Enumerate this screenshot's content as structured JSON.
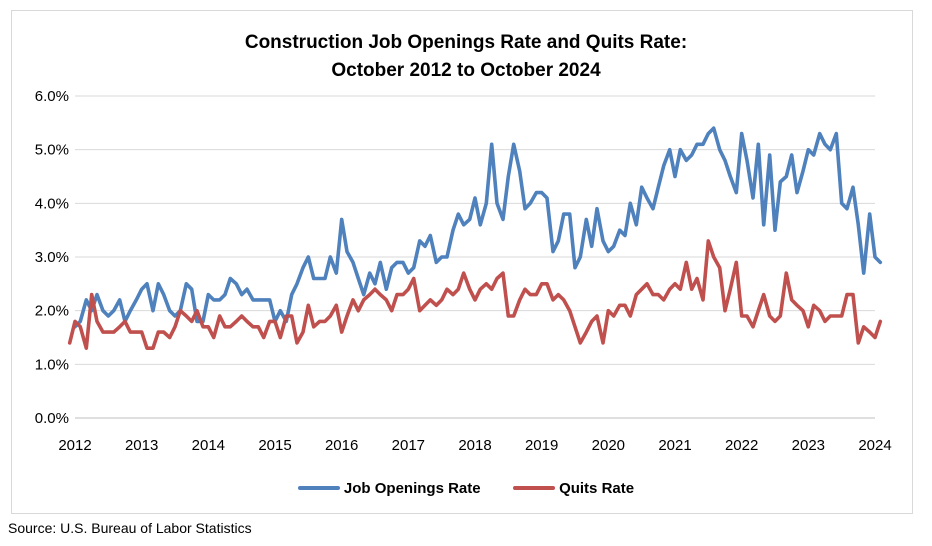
{
  "chart_data": {
    "type": "line",
    "title": "Construction Job Openings Rate and Quits Rate:",
    "subtitle": "October 2012 to October 2024",
    "ylim": [
      0,
      6
    ],
    "xlim": [
      2012,
      2024
    ],
    "y_ticks": [
      "0.0%",
      "1.0%",
      "2.0%",
      "3.0%",
      "4.0%",
      "5.0%",
      "6.0%"
    ],
    "x_ticks": [
      "2012",
      "2013",
      "2014",
      "2015",
      "2016",
      "2017",
      "2018",
      "2019",
      "2020",
      "2021",
      "2022",
      "2023",
      "2024"
    ],
    "grid": "horizontal",
    "legend_position": "bottom",
    "series": [
      {
        "name": "Job Openings Rate",
        "color": "#4f81bd",
        "points": [
          [
            2012.0,
            1.7
          ],
          [
            2012.08,
            1.8
          ],
          [
            2012.17,
            2.2
          ],
          [
            2012.25,
            2.0
          ],
          [
            2012.33,
            2.3
          ],
          [
            2012.42,
            2.0
          ],
          [
            2012.5,
            1.9
          ],
          [
            2012.58,
            2.0
          ],
          [
            2012.67,
            2.2
          ],
          [
            2012.75,
            1.8
          ],
          [
            2012.83,
            2.0
          ],
          [
            2012.92,
            2.2
          ],
          [
            2013.0,
            2.4
          ],
          [
            2013.08,
            2.5
          ],
          [
            2013.17,
            2.0
          ],
          [
            2013.25,
            2.5
          ],
          [
            2013.33,
            2.3
          ],
          [
            2013.42,
            2.0
          ],
          [
            2013.5,
            1.9
          ],
          [
            2013.58,
            2.0
          ],
          [
            2013.67,
            2.5
          ],
          [
            2013.75,
            2.4
          ],
          [
            2013.83,
            1.8
          ],
          [
            2013.92,
            1.8
          ],
          [
            2014.0,
            2.3
          ],
          [
            2014.08,
            2.2
          ],
          [
            2014.17,
            2.2
          ],
          [
            2014.25,
            2.3
          ],
          [
            2014.33,
            2.6
          ],
          [
            2014.42,
            2.5
          ],
          [
            2014.5,
            2.3
          ],
          [
            2014.58,
            2.4
          ],
          [
            2014.67,
            2.2
          ],
          [
            2014.75,
            2.2
          ],
          [
            2014.83,
            2.2
          ],
          [
            2014.92,
            2.2
          ],
          [
            2015.0,
            1.8
          ],
          [
            2015.08,
            2.0
          ],
          [
            2015.17,
            1.8
          ],
          [
            2015.25,
            2.3
          ],
          [
            2015.33,
            2.5
          ],
          [
            2015.42,
            2.8
          ],
          [
            2015.5,
            3.0
          ],
          [
            2015.58,
            2.6
          ],
          [
            2015.67,
            2.6
          ],
          [
            2015.75,
            2.6
          ],
          [
            2015.83,
            3.0
          ],
          [
            2015.92,
            2.7
          ],
          [
            2016.0,
            3.7
          ],
          [
            2016.08,
            3.1
          ],
          [
            2016.17,
            2.9
          ],
          [
            2016.25,
            2.6
          ],
          [
            2016.33,
            2.3
          ],
          [
            2016.42,
            2.7
          ],
          [
            2016.5,
            2.5
          ],
          [
            2016.58,
            2.9
          ],
          [
            2016.67,
            2.4
          ],
          [
            2016.75,
            2.8
          ],
          [
            2016.83,
            2.9
          ],
          [
            2016.92,
            2.9
          ],
          [
            2017.0,
            2.7
          ],
          [
            2017.08,
            2.8
          ],
          [
            2017.17,
            3.3
          ],
          [
            2017.25,
            3.2
          ],
          [
            2017.33,
            3.4
          ],
          [
            2017.42,
            2.9
          ],
          [
            2017.5,
            3.0
          ],
          [
            2017.58,
            3.0
          ],
          [
            2017.67,
            3.5
          ],
          [
            2017.75,
            3.8
          ],
          [
            2017.83,
            3.6
          ],
          [
            2017.92,
            3.7
          ],
          [
            2018.0,
            4.1
          ],
          [
            2018.08,
            3.6
          ],
          [
            2018.17,
            4.0
          ],
          [
            2018.25,
            5.1
          ],
          [
            2018.33,
            4.0
          ],
          [
            2018.42,
            3.7
          ],
          [
            2018.5,
            4.5
          ],
          [
            2018.58,
            5.1
          ],
          [
            2018.67,
            4.6
          ],
          [
            2018.75,
            3.9
          ],
          [
            2018.83,
            4.0
          ],
          [
            2018.92,
            4.2
          ],
          [
            2019.0,
            4.2
          ],
          [
            2019.08,
            4.1
          ],
          [
            2019.17,
            3.1
          ],
          [
            2019.25,
            3.3
          ],
          [
            2019.33,
            3.8
          ],
          [
            2019.42,
            3.8
          ],
          [
            2019.5,
            2.8
          ],
          [
            2019.58,
            3.0
          ],
          [
            2019.67,
            3.7
          ],
          [
            2019.75,
            3.2
          ],
          [
            2019.83,
            3.9
          ],
          [
            2019.92,
            3.3
          ],
          [
            2020.0,
            3.1
          ],
          [
            2020.08,
            3.2
          ],
          [
            2020.17,
            3.5
          ],
          [
            2020.25,
            3.4
          ],
          [
            2020.33,
            4.0
          ],
          [
            2020.42,
            3.6
          ],
          [
            2020.5,
            4.3
          ],
          [
            2020.58,
            4.1
          ],
          [
            2020.67,
            3.9
          ],
          [
            2020.75,
            4.3
          ],
          [
            2020.83,
            4.7
          ],
          [
            2020.92,
            5.0
          ],
          [
            2021.0,
            4.5
          ],
          [
            2021.08,
            5.0
          ],
          [
            2021.17,
            4.8
          ],
          [
            2021.25,
            4.9
          ],
          [
            2021.33,
            5.1
          ],
          [
            2021.42,
            5.1
          ],
          [
            2021.5,
            5.3
          ],
          [
            2021.58,
            5.4
          ],
          [
            2021.67,
            5.0
          ],
          [
            2021.75,
            4.8
          ],
          [
            2021.83,
            4.5
          ],
          [
            2021.92,
            4.2
          ],
          [
            2022.0,
            5.3
          ],
          [
            2022.08,
            4.8
          ],
          [
            2022.17,
            4.1
          ],
          [
            2022.25,
            5.1
          ],
          [
            2022.33,
            3.6
          ],
          [
            2022.42,
            4.9
          ],
          [
            2022.5,
            3.5
          ],
          [
            2022.58,
            4.4
          ],
          [
            2022.67,
            4.5
          ],
          [
            2022.75,
            4.9
          ],
          [
            2022.83,
            4.2
          ],
          [
            2022.92,
            4.6
          ],
          [
            2023.0,
            5.0
          ],
          [
            2023.08,
            4.9
          ],
          [
            2023.17,
            5.3
          ],
          [
            2023.25,
            5.1
          ],
          [
            2023.33,
            5.0
          ],
          [
            2023.42,
            5.3
          ],
          [
            2023.5,
            4.0
          ],
          [
            2023.58,
            3.9
          ],
          [
            2023.67,
            4.3
          ],
          [
            2023.75,
            3.6
          ],
          [
            2023.83,
            2.7
          ],
          [
            2023.92,
            3.8
          ],
          [
            2024.0,
            3.0
          ],
          [
            2024.08,
            2.9
          ]
        ]
      },
      {
        "name": "Quits Rate",
        "color": "#c0504d",
        "points": [
          [
            2011.92,
            1.4
          ],
          [
            2012.0,
            1.8
          ],
          [
            2012.08,
            1.7
          ],
          [
            2012.17,
            1.3
          ],
          [
            2012.25,
            2.3
          ],
          [
            2012.33,
            1.8
          ],
          [
            2012.42,
            1.6
          ],
          [
            2012.5,
            1.6
          ],
          [
            2012.58,
            1.6
          ],
          [
            2012.67,
            1.7
          ],
          [
            2012.75,
            1.8
          ],
          [
            2012.83,
            1.6
          ],
          [
            2012.92,
            1.6
          ],
          [
            2013.0,
            1.6
          ],
          [
            2013.08,
            1.3
          ],
          [
            2013.17,
            1.3
          ],
          [
            2013.25,
            1.6
          ],
          [
            2013.33,
            1.6
          ],
          [
            2013.42,
            1.5
          ],
          [
            2013.5,
            1.7
          ],
          [
            2013.58,
            2.0
          ],
          [
            2013.67,
            1.9
          ],
          [
            2013.75,
            1.8
          ],
          [
            2013.83,
            2.0
          ],
          [
            2013.92,
            1.7
          ],
          [
            2014.0,
            1.7
          ],
          [
            2014.08,
            1.5
          ],
          [
            2014.17,
            1.9
          ],
          [
            2014.25,
            1.7
          ],
          [
            2014.33,
            1.7
          ],
          [
            2014.42,
            1.8
          ],
          [
            2014.5,
            1.9
          ],
          [
            2014.58,
            1.8
          ],
          [
            2014.67,
            1.7
          ],
          [
            2014.75,
            1.7
          ],
          [
            2014.83,
            1.5
          ],
          [
            2014.92,
            1.8
          ],
          [
            2015.0,
            1.8
          ],
          [
            2015.08,
            1.5
          ],
          [
            2015.17,
            1.9
          ],
          [
            2015.25,
            1.9
          ],
          [
            2015.33,
            1.4
          ],
          [
            2015.42,
            1.6
          ],
          [
            2015.5,
            2.1
          ],
          [
            2015.58,
            1.7
          ],
          [
            2015.67,
            1.8
          ],
          [
            2015.75,
            1.8
          ],
          [
            2015.83,
            1.9
          ],
          [
            2015.92,
            2.1
          ],
          [
            2016.0,
            1.6
          ],
          [
            2016.08,
            1.9
          ],
          [
            2016.17,
            2.2
          ],
          [
            2016.25,
            2.0
          ],
          [
            2016.33,
            2.2
          ],
          [
            2016.42,
            2.3
          ],
          [
            2016.5,
            2.4
          ],
          [
            2016.58,
            2.3
          ],
          [
            2016.67,
            2.2
          ],
          [
            2016.75,
            2.0
          ],
          [
            2016.83,
            2.3
          ],
          [
            2016.92,
            2.3
          ],
          [
            2017.0,
            2.4
          ],
          [
            2017.08,
            2.6
          ],
          [
            2017.17,
            2.0
          ],
          [
            2017.25,
            2.1
          ],
          [
            2017.33,
            2.2
          ],
          [
            2017.42,
            2.1
          ],
          [
            2017.5,
            2.2
          ],
          [
            2017.58,
            2.4
          ],
          [
            2017.67,
            2.3
          ],
          [
            2017.75,
            2.4
          ],
          [
            2017.83,
            2.7
          ],
          [
            2017.92,
            2.4
          ],
          [
            2018.0,
            2.2
          ],
          [
            2018.08,
            2.4
          ],
          [
            2018.17,
            2.5
          ],
          [
            2018.25,
            2.4
          ],
          [
            2018.33,
            2.6
          ],
          [
            2018.42,
            2.7
          ],
          [
            2018.5,
            1.9
          ],
          [
            2018.58,
            1.9
          ],
          [
            2018.67,
            2.2
          ],
          [
            2018.75,
            2.4
          ],
          [
            2018.83,
            2.3
          ],
          [
            2018.92,
            2.3
          ],
          [
            2019.0,
            2.5
          ],
          [
            2019.08,
            2.5
          ],
          [
            2019.17,
            2.2
          ],
          [
            2019.25,
            2.3
          ],
          [
            2019.33,
            2.2
          ],
          [
            2019.42,
            2.0
          ],
          [
            2019.5,
            1.7
          ],
          [
            2019.58,
            1.4
          ],
          [
            2019.67,
            1.6
          ],
          [
            2019.75,
            1.8
          ],
          [
            2019.83,
            1.9
          ],
          [
            2019.92,
            1.4
          ],
          [
            2020.0,
            2.0
          ],
          [
            2020.08,
            1.9
          ],
          [
            2020.17,
            2.1
          ],
          [
            2020.25,
            2.1
          ],
          [
            2020.33,
            1.9
          ],
          [
            2020.42,
            2.3
          ],
          [
            2020.5,
            2.4
          ],
          [
            2020.58,
            2.5
          ],
          [
            2020.67,
            2.3
          ],
          [
            2020.75,
            2.3
          ],
          [
            2020.83,
            2.2
          ],
          [
            2020.92,
            2.4
          ],
          [
            2021.0,
            2.5
          ],
          [
            2021.08,
            2.4
          ],
          [
            2021.17,
            2.9
          ],
          [
            2021.25,
            2.4
          ],
          [
            2021.33,
            2.6
          ],
          [
            2021.42,
            2.2
          ],
          [
            2021.5,
            3.3
          ],
          [
            2021.58,
            3.0
          ],
          [
            2021.67,
            2.8
          ],
          [
            2021.75,
            2.0
          ],
          [
            2021.83,
            2.4
          ],
          [
            2021.92,
            2.9
          ],
          [
            2022.0,
            1.9
          ],
          [
            2022.08,
            1.9
          ],
          [
            2022.17,
            1.7
          ],
          [
            2022.25,
            2.0
          ],
          [
            2022.33,
            2.3
          ],
          [
            2022.42,
            1.9
          ],
          [
            2022.5,
            1.8
          ],
          [
            2022.58,
            1.9
          ],
          [
            2022.67,
            2.7
          ],
          [
            2022.75,
            2.2
          ],
          [
            2022.83,
            2.1
          ],
          [
            2022.92,
            2.0
          ],
          [
            2023.0,
            1.7
          ],
          [
            2023.08,
            2.1
          ],
          [
            2023.17,
            2.0
          ],
          [
            2023.25,
            1.8
          ],
          [
            2023.33,
            1.9
          ],
          [
            2023.42,
            1.9
          ],
          [
            2023.5,
            1.9
          ],
          [
            2023.58,
            2.3
          ],
          [
            2023.67,
            2.3
          ],
          [
            2023.75,
            1.4
          ],
          [
            2023.83,
            1.7
          ],
          [
            2023.92,
            1.6
          ],
          [
            2024.0,
            1.5
          ],
          [
            2024.08,
            1.8
          ]
        ]
      }
    ]
  },
  "source": "Source: U.S. Bureau of Labor Statistics"
}
